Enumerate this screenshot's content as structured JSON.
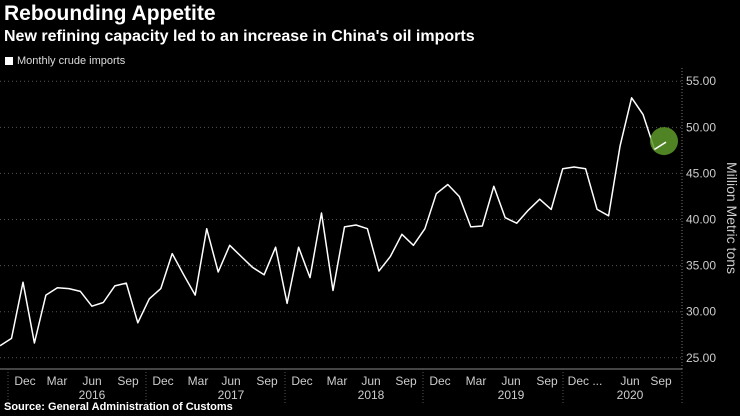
{
  "chart_data": {
    "type": "line",
    "title": "Rebounding Appetite",
    "subtitle": "New refining capacity led to an increase in China's oil imports",
    "ylabel": "Million Metric tons",
    "ylim": [
      24,
      56
    ],
    "yticks": [
      "25.00",
      "30.00",
      "35.00",
      "40.00",
      "45.00",
      "50.00",
      "55.00"
    ],
    "xticks": [
      "Dec",
      "Mar",
      "Jun",
      "Sep",
      "Dec",
      "Mar",
      "Jun",
      "Sep",
      "Dec",
      "Mar",
      "Jun",
      "Sep",
      "Dec",
      "Mar",
      "Jun",
      "Sep",
      "Dec ...",
      "Jun",
      "Sep"
    ],
    "years": [
      "2016",
      "2017",
      "2018",
      "2019",
      "2020"
    ],
    "series": [
      {
        "name": "Monthly crude imports",
        "color": "#ffffff",
        "values": [
          26.3,
          27.1,
          33.2,
          26.6,
          31.8,
          32.6,
          32.5,
          32.2,
          30.6,
          31.0,
          32.8,
          33.1,
          28.8,
          31.4,
          32.5,
          36.3,
          34.0,
          31.8,
          39.0,
          34.3,
          37.2,
          36.0,
          34.8,
          34.0,
          37.0,
          30.9,
          37.0,
          33.7,
          40.7,
          32.3,
          39.2,
          39.4,
          39.0,
          34.4,
          36.0,
          38.4,
          37.2,
          39.0,
          42.8,
          43.8,
          42.5,
          39.2,
          39.3,
          43.6,
          40.2,
          39.6,
          41.0,
          42.2,
          41.1,
          45.5,
          45.7,
          45.5,
          41.1,
          40.4,
          48.0,
          53.2,
          51.4,
          47.6,
          48.4
        ]
      }
    ],
    "highlight": {
      "label": "Sep 2020",
      "value": 48.4,
      "color": "#5e9a2a"
    }
  },
  "source": "Source: General Administration of Customs"
}
